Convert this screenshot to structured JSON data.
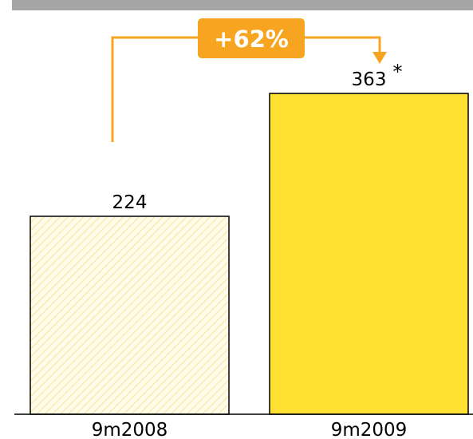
{
  "chart_data": {
    "type": "bar",
    "categories": [
      "9m2008",
      "9m2009"
    ],
    "values": [
      224,
      363
    ],
    "data_labels": [
      "224",
      "363"
    ],
    "footnote_marker": "*",
    "change_badge": "+62%",
    "ylim": [
      0,
      400
    ],
    "grid": false,
    "legend": "none",
    "bar_styles": [
      "hatched",
      "solid"
    ]
  },
  "colors": {
    "top_band": "#a6a6a6",
    "bar_solid": "#ffe033",
    "bar_hatch_bg": "#fffbe8",
    "bar_hatch_line": "#f3df8a",
    "bar_border": "#000000",
    "arrow": "#f7a521",
    "badge_bg": "#f7a521",
    "axis": "#000000"
  },
  "icons": {
    "change_arrow": "bracket-arrow-down-icon"
  }
}
